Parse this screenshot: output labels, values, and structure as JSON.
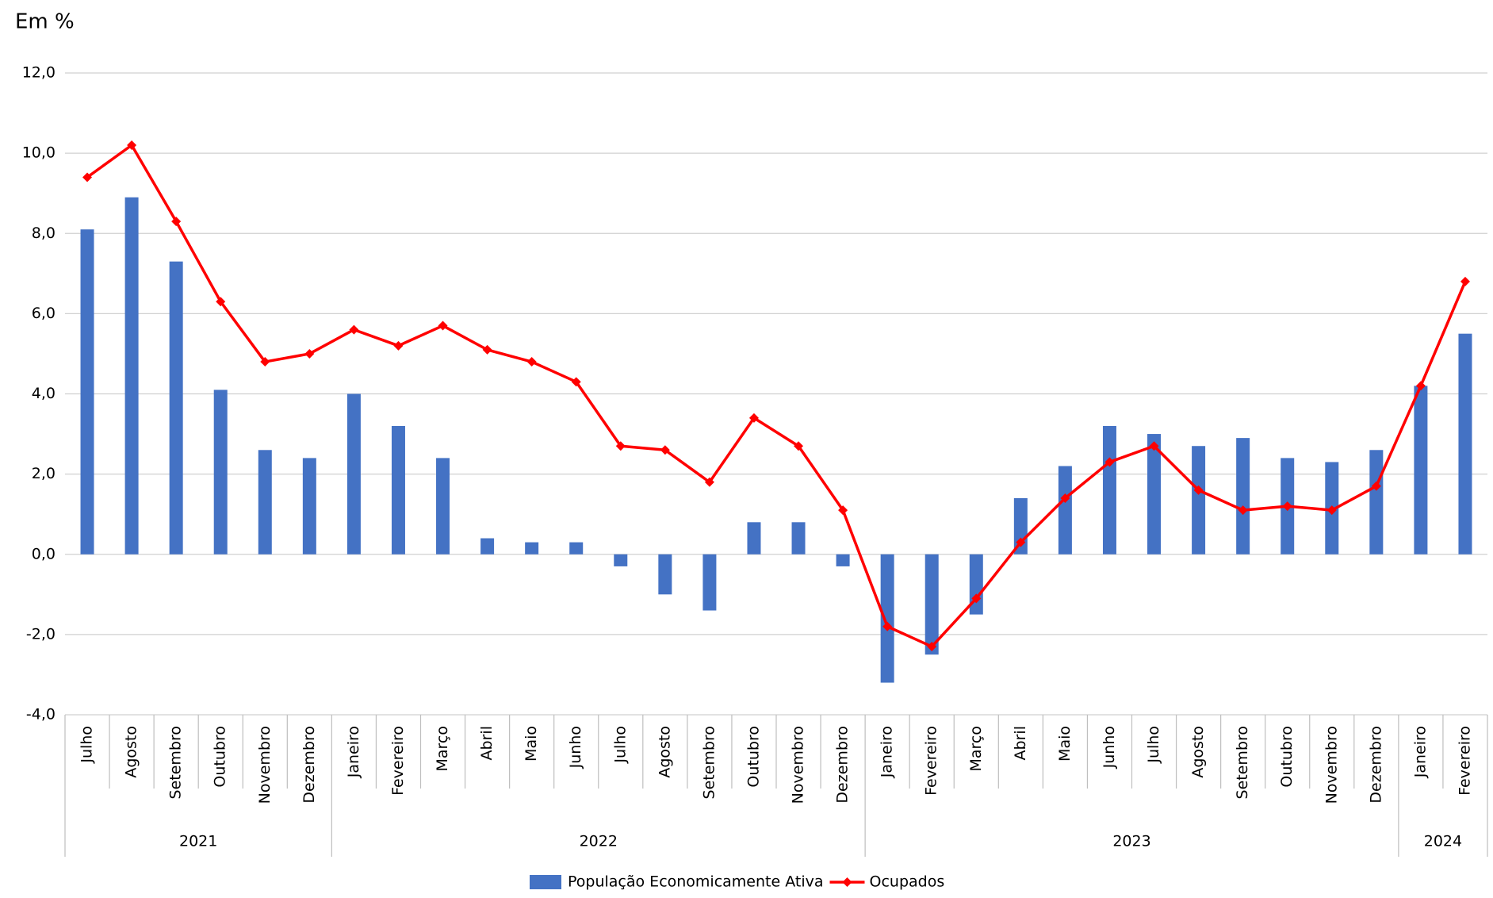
{
  "chart_data": {
    "type": "bar-line",
    "unit_label": "Em %",
    "groups": [
      {
        "name": "2021",
        "categories": [
          "Julho",
          "Agosto",
          "Setembro",
          "Outubro",
          "Novembro",
          "Dezembro"
        ]
      },
      {
        "name": "2022",
        "categories": [
          "Janeiro",
          "Fevereiro",
          "Março",
          "Abril",
          "Maio",
          "Junho",
          "Julho",
          "Agosto",
          "Setembro",
          "Outubro",
          "Novembro",
          "Dezembro"
        ]
      },
      {
        "name": "2023",
        "categories": [
          "Janeiro",
          "Fevereiro",
          "Março",
          "Abril",
          "Maio",
          "Junho",
          "Julho",
          "Agosto",
          "Setembro",
          "Outubro",
          "Novembro",
          "Dezembro"
        ]
      },
      {
        "name": "2024",
        "categories": [
          "Janeiro",
          "Fevereiro"
        ]
      }
    ],
    "series": [
      {
        "name": "População Economicamente Ativa",
        "type": "bar",
        "color": "#4472c4",
        "values": [
          8.1,
          8.9,
          7.3,
          4.1,
          2.6,
          2.4,
          4.0,
          3.2,
          2.4,
          0.4,
          0.3,
          0.3,
          -0.3,
          -1.0,
          -1.4,
          0.8,
          0.8,
          -0.3,
          -3.2,
          -2.5,
          -1.5,
          1.4,
          2.2,
          3.2,
          3.0,
          2.7,
          2.9,
          2.4,
          2.3,
          2.6,
          4.2,
          5.5
        ]
      },
      {
        "name": "Ocupados",
        "type": "line",
        "color": "#ff0000",
        "values": [
          9.4,
          10.2,
          8.3,
          6.3,
          4.8,
          5.0,
          5.6,
          5.2,
          5.7,
          5.1,
          4.8,
          4.3,
          2.7,
          2.6,
          1.8,
          3.4,
          2.7,
          1.1,
          -1.8,
          -2.3,
          -1.1,
          0.3,
          1.4,
          2.3,
          2.7,
          1.6,
          1.1,
          1.2,
          1.1,
          1.7,
          4.2,
          6.8
        ]
      }
    ],
    "ylim": [
      -4,
      12
    ],
    "yticks": [
      {
        "value": -4,
        "label": "-4,0"
      },
      {
        "value": -2,
        "label": "-2,0"
      },
      {
        "value": 0,
        "label": "0,0"
      },
      {
        "value": 2,
        "label": "2,0"
      },
      {
        "value": 4,
        "label": "4,0"
      },
      {
        "value": 6,
        "label": "6,0"
      },
      {
        "value": 8,
        "label": "8,0"
      },
      {
        "value": 10,
        "label": "10,0"
      },
      {
        "value": 12,
        "label": "12,0"
      }
    ],
    "grid": true,
    "legend": "bottom"
  }
}
